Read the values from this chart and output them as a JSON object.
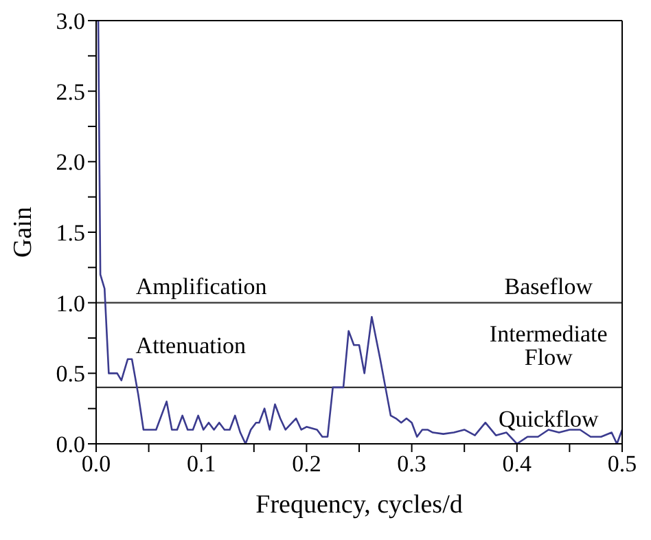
{
  "chart_data": {
    "type": "line",
    "xlabel": "Frequency, cycles/d",
    "ylabel": "Gain",
    "x": [
      0,
      0.002,
      0.004,
      0.008,
      0.012,
      0.02,
      0.024,
      0.03,
      0.034,
      0.04,
      0.045,
      0.057,
      0.067,
      0.072,
      0.077,
      0.082,
      0.087,
      0.092,
      0.097,
      0.102,
      0.107,
      0.112,
      0.117,
      0.122,
      0.127,
      0.132,
      0.137,
      0.142,
      0.147,
      0.152,
      0.155,
      0.16,
      0.165,
      0.17,
      0.175,
      0.18,
      0.19,
      0.195,
      0.2,
      0.21,
      0.215,
      0.22,
      0.225,
      0.235,
      0.24,
      0.245,
      0.25,
      0.255,
      0.262,
      0.27,
      0.275,
      0.28,
      0.285,
      0.29,
      0.295,
      0.3,
      0.305,
      0.31,
      0.315,
      0.32,
      0.33,
      0.34,
      0.35,
      0.36,
      0.37,
      0.38,
      0.39,
      0.4,
      0.41,
      0.42,
      0.43,
      0.44,
      0.45,
      0.46,
      0.47,
      0.48,
      0.49,
      0.495,
      0.5
    ],
    "series": [
      {
        "color": "#3b3b8f",
        "values": [
          3.0,
          3.0,
          1.2,
          1.1,
          0.5,
          0.5,
          0.45,
          0.6,
          0.6,
          0.35,
          0.1,
          0.1,
          0.3,
          0.1,
          0.1,
          0.2,
          0.1,
          0.1,
          0.2,
          0.1,
          0.15,
          0.1,
          0.15,
          0.1,
          0.1,
          0.2,
          0.08,
          0.0,
          0.1,
          0.15,
          0.15,
          0.25,
          0.1,
          0.28,
          0.18,
          0.1,
          0.18,
          0.1,
          0.12,
          0.1,
          0.05,
          0.05,
          0.4,
          0.4,
          0.8,
          0.7,
          0.7,
          0.5,
          0.9,
          0.6,
          0.4,
          0.2,
          0.18,
          0.15,
          0.18,
          0.15,
          0.05,
          0.1,
          0.1,
          0.08,
          0.07,
          0.08,
          0.1,
          0.06,
          0.15,
          0.06,
          0.08,
          0.0,
          0.05,
          0.05,
          0.1,
          0.08,
          0.1,
          0.1,
          0.05,
          0.05,
          0.08,
          0.0,
          0.1
        ]
      }
    ],
    "xlim": [
      0,
      0.5
    ],
    "xticks": [
      {
        "value": 0,
        "label": "0.0"
      },
      {
        "value": 0.05,
        "label": null
      },
      0.1,
      {
        "value": 0.15,
        "label": null
      },
      0.2,
      {
        "value": 0.25,
        "label": null
      },
      0.3,
      {
        "value": 0.35,
        "label": null
      },
      0.4,
      {
        "value": 0.45,
        "label": null
      },
      0.5
    ],
    "ylim": [
      0,
      3
    ],
    "yticks": [
      {
        "value": 0,
        "label": "0.0"
      },
      {
        "value": 0.25,
        "label": null
      },
      0.5,
      {
        "value": 0.75,
        "label": null
      },
      {
        "value": 1,
        "label": "1.0"
      },
      {
        "value": 1.25,
        "label": null
      },
      1.5,
      {
        "value": 1.75,
        "label": null
      },
      {
        "value": 2,
        "label": "2.0"
      },
      {
        "value": 2.25,
        "label": null
      },
      2.5,
      {
        "value": 2.75,
        "label": null
      },
      {
        "value": 3,
        "label": "3.0"
      }
    ],
    "ref_lines": [
      {
        "axis": "y",
        "value": 1.0,
        "color": "#333333"
      },
      {
        "axis": "y",
        "value": 0.4,
        "color": "#333333"
      }
    ],
    "annotations": [
      "Amplification",
      "Baseflow",
      "Attenuation",
      "Intermediate Flow",
      "Quickflow"
    ]
  }
}
